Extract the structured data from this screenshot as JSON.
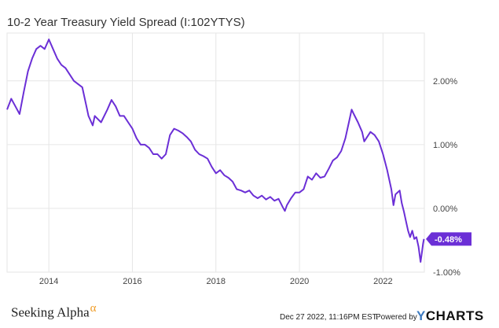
{
  "header": {
    "title": "10-2 Year Treasury Yield Spread (I:102YTYS)"
  },
  "footer": {
    "brand": "Seeking Alpha",
    "brand_symbol": "α",
    "timestamp": "Dec 27 2022, 11:16PM EST.",
    "powered_by": "Powered by",
    "ycharts_logo_y": "Y",
    "ycharts_logo_rest": "CHARTS"
  },
  "colors": {
    "line": "#6b2fd6",
    "grid": "#e6e6e6",
    "label_bg": "#6b2fd6",
    "alpha": "#f09b24",
    "ycharts_y": "#3f7cc1"
  },
  "chart_data": {
    "type": "line",
    "title": "10-2 Year Treasury Yield Spread (I:102YTYS)",
    "xlabel": "",
    "ylabel": "",
    "x_ticks": [
      "2014",
      "2016",
      "2018",
      "2020",
      "2022"
    ],
    "x_tick_values": [
      2014,
      2016,
      2018,
      2020,
      2022
    ],
    "y_ticks": [
      "2.00%",
      "1.00%",
      "0.00%",
      "-1.00%"
    ],
    "y_tick_values": [
      2.0,
      1.0,
      0.0,
      -1.0
    ],
    "xlim": [
      2013.0,
      2022.99
    ],
    "ylim": [
      -1.0,
      2.75
    ],
    "y_axis_position": "right",
    "grid": true,
    "last_value_label": "-0.48%",
    "last_value": -0.48,
    "series": [
      {
        "values": [
          [
            2013.0,
            1.55
          ],
          [
            2013.1,
            1.72
          ],
          [
            2013.2,
            1.6
          ],
          [
            2013.3,
            1.48
          ],
          [
            2013.4,
            1.83
          ],
          [
            2013.5,
            2.15
          ],
          [
            2013.6,
            2.35
          ],
          [
            2013.7,
            2.5
          ],
          [
            2013.8,
            2.55
          ],
          [
            2013.9,
            2.5
          ],
          [
            2014.0,
            2.65
          ],
          [
            2014.1,
            2.5
          ],
          [
            2014.2,
            2.35
          ],
          [
            2014.3,
            2.25
          ],
          [
            2014.4,
            2.2
          ],
          [
            2014.5,
            2.1
          ],
          [
            2014.6,
            2.0
          ],
          [
            2014.7,
            1.95
          ],
          [
            2014.8,
            1.9
          ],
          [
            2014.9,
            1.6
          ],
          [
            2014.95,
            1.45
          ],
          [
            2015.05,
            1.3
          ],
          [
            2015.1,
            1.45
          ],
          [
            2015.25,
            1.35
          ],
          [
            2015.4,
            1.55
          ],
          [
            2015.5,
            1.7
          ],
          [
            2015.6,
            1.6
          ],
          [
            2015.7,
            1.45
          ],
          [
            2015.8,
            1.45
          ],
          [
            2015.9,
            1.35
          ],
          [
            2016.0,
            1.25
          ],
          [
            2016.1,
            1.1
          ],
          [
            2016.2,
            1.0
          ],
          [
            2016.3,
            1.0
          ],
          [
            2016.4,
            0.95
          ],
          [
            2016.5,
            0.85
          ],
          [
            2016.6,
            0.85
          ],
          [
            2016.7,
            0.78
          ],
          [
            2016.8,
            0.85
          ],
          [
            2016.9,
            1.15
          ],
          [
            2017.0,
            1.25
          ],
          [
            2017.1,
            1.22
          ],
          [
            2017.2,
            1.18
          ],
          [
            2017.3,
            1.12
          ],
          [
            2017.4,
            1.05
          ],
          [
            2017.5,
            0.92
          ],
          [
            2017.6,
            0.85
          ],
          [
            2017.7,
            0.82
          ],
          [
            2017.8,
            0.78
          ],
          [
            2017.9,
            0.65
          ],
          [
            2018.0,
            0.55
          ],
          [
            2018.1,
            0.6
          ],
          [
            2018.2,
            0.52
          ],
          [
            2018.3,
            0.48
          ],
          [
            2018.4,
            0.42
          ],
          [
            2018.5,
            0.3
          ],
          [
            2018.6,
            0.28
          ],
          [
            2018.7,
            0.25
          ],
          [
            2018.8,
            0.28
          ],
          [
            2018.9,
            0.2
          ],
          [
            2019.0,
            0.16
          ],
          [
            2019.1,
            0.2
          ],
          [
            2019.2,
            0.14
          ],
          [
            2019.3,
            0.18
          ],
          [
            2019.4,
            0.12
          ],
          [
            2019.5,
            0.15
          ],
          [
            2019.6,
            0.02
          ],
          [
            2019.65,
            -0.04
          ],
          [
            2019.7,
            0.05
          ],
          [
            2019.8,
            0.16
          ],
          [
            2019.9,
            0.25
          ],
          [
            2020.0,
            0.25
          ],
          [
            2020.1,
            0.3
          ],
          [
            2020.2,
            0.5
          ],
          [
            2020.3,
            0.45
          ],
          [
            2020.4,
            0.55
          ],
          [
            2020.5,
            0.48
          ],
          [
            2020.6,
            0.5
          ],
          [
            2020.7,
            0.62
          ],
          [
            2020.8,
            0.75
          ],
          [
            2020.9,
            0.8
          ],
          [
            2021.0,
            0.9
          ],
          [
            2021.1,
            1.1
          ],
          [
            2021.2,
            1.4
          ],
          [
            2021.25,
            1.55
          ],
          [
            2021.3,
            1.48
          ],
          [
            2021.4,
            1.35
          ],
          [
            2021.5,
            1.2
          ],
          [
            2021.55,
            1.05
          ],
          [
            2021.6,
            1.1
          ],
          [
            2021.7,
            1.2
          ],
          [
            2021.8,
            1.15
          ],
          [
            2021.9,
            1.05
          ],
          [
            2022.0,
            0.85
          ],
          [
            2022.1,
            0.6
          ],
          [
            2022.2,
            0.3
          ],
          [
            2022.25,
            0.05
          ],
          [
            2022.3,
            0.22
          ],
          [
            2022.4,
            0.28
          ],
          [
            2022.45,
            0.08
          ],
          [
            2022.5,
            -0.05
          ],
          [
            2022.55,
            -0.2
          ],
          [
            2022.6,
            -0.35
          ],
          [
            2022.65,
            -0.45
          ],
          [
            2022.7,
            -0.35
          ],
          [
            2022.75,
            -0.48
          ],
          [
            2022.8,
            -0.45
          ],
          [
            2022.85,
            -0.6
          ],
          [
            2022.9,
            -0.84
          ],
          [
            2022.93,
            -0.7
          ],
          [
            2022.96,
            -0.55
          ],
          [
            2022.98,
            -0.48
          ]
        ]
      }
    ]
  }
}
